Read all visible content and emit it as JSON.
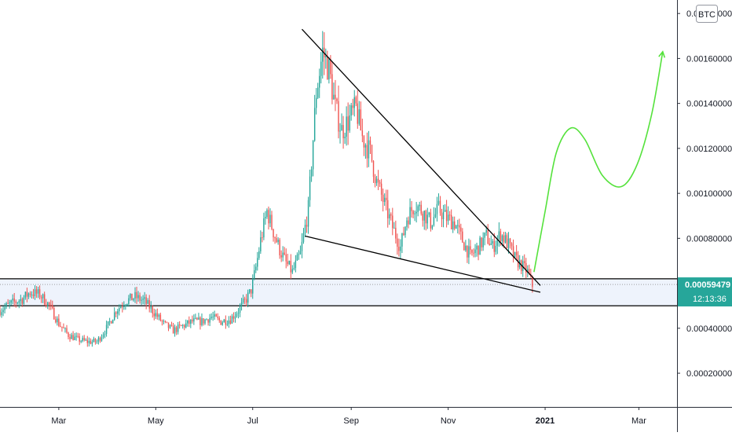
{
  "chart_data": {
    "type": "candlestick",
    "currency_label": "BTC",
    "price_axis": {
      "ticks": [
        "0.00180000",
        "0.00160000",
        "0.00140000",
        "0.00120000",
        "0.00100000",
        "0.00080000",
        "0.00060000",
        "0.00040000",
        "0.00020000"
      ],
      "tick_values": [
        0.0018,
        0.0016,
        0.0014,
        0.0012,
        0.001,
        0.0008,
        0.0006,
        0.0004,
        0.0002
      ],
      "ylim": [
        5e-05,
        0.00186
      ]
    },
    "time_axis": {
      "labels": [
        "Mar",
        "May",
        "Jul",
        "Sep",
        "Nov",
        "2021",
        "Mar"
      ],
      "bold": [
        false,
        false,
        false,
        false,
        false,
        true,
        false
      ],
      "label_days": [
        0,
        61,
        122,
        184,
        245,
        306,
        365
      ],
      "xlim_days": [
        -37,
        389
      ]
    },
    "last_price": {
      "value": "0.00059479",
      "countdown": "12:13:36",
      "color": "#26a69a"
    },
    "colors": {
      "up": "#26a69a",
      "down": "#ef5350",
      "forecast": "#55e23c",
      "zone_fill": "#eef3fc",
      "line": "#000000"
    },
    "price_path": [
      [
        -37,
        0.00048
      ],
      [
        -30,
        0.00051
      ],
      [
        -23,
        0.00053
      ],
      [
        -18,
        0.00056
      ],
      [
        -12,
        0.00055
      ],
      [
        -6,
        0.0005
      ],
      [
        0,
        0.00042
      ],
      [
        6,
        0.00037
      ],
      [
        12,
        0.00035
      ],
      [
        18,
        0.00034
      ],
      [
        24,
        0.00034
      ],
      [
        30,
        0.0004
      ],
      [
        36,
        0.00048
      ],
      [
        42,
        0.00052
      ],
      [
        48,
        0.00054
      ],
      [
        54,
        0.00052
      ],
      [
        60,
        0.00047
      ],
      [
        66,
        0.00042
      ],
      [
        72,
        0.00039
      ],
      [
        78,
        0.00041
      ],
      [
        84,
        0.00043
      ],
      [
        90,
        0.00043
      ],
      [
        96,
        0.00045
      ],
      [
        102,
        0.00043
      ],
      [
        108,
        0.00044
      ],
      [
        113,
        0.00048
      ],
      [
        118,
        0.00053
      ],
      [
        121,
        0.00057
      ],
      [
        124,
        0.00067
      ],
      [
        127,
        0.00079
      ],
      [
        131,
        0.00092
      ],
      [
        135,
        0.00083
      ],
      [
        139,
        0.00075
      ],
      [
        143,
        0.00069
      ],
      [
        147,
        0.00065
      ],
      [
        152,
        0.00073
      ],
      [
        157,
        0.00093
      ],
      [
        162,
        0.00145
      ],
      [
        166,
        0.00163
      ],
      [
        170,
        0.00155
      ],
      [
        174,
        0.00138
      ],
      [
        178,
        0.00128
      ],
      [
        182,
        0.00132
      ],
      [
        187,
        0.00138
      ],
      [
        191,
        0.00125
      ],
      [
        196,
        0.00118
      ],
      [
        200,
        0.00105
      ],
      [
        205,
        0.00095
      ],
      [
        210,
        0.00085
      ],
      [
        215,
        0.00076
      ],
      [
        219,
        0.00089
      ],
      [
        224,
        0.00095
      ],
      [
        229,
        0.00092
      ],
      [
        234,
        0.00087
      ],
      [
        239,
        0.00093
      ],
      [
        244,
        0.00089
      ],
      [
        249,
        0.00087
      ],
      [
        254,
        0.00079
      ],
      [
        259,
        0.00072
      ],
      [
        264,
        0.00076
      ],
      [
        269,
        0.00081
      ],
      [
        273,
        0.00076
      ],
      [
        278,
        0.00082
      ],
      [
        283,
        0.00077
      ],
      [
        287,
        0.00071
      ],
      [
        291,
        0.00068
      ],
      [
        295,
        0.00065
      ],
      [
        298,
        0.00059
      ]
    ],
    "annotations": {
      "wedge_upper": [
        [
          153,
          0.00173
        ],
        [
          303,
          0.00059
        ]
      ],
      "wedge_lower": [
        [
          155,
          0.00081
        ],
        [
          303,
          0.00056
        ]
      ],
      "zone": [
        0.0005,
        0.00062
      ],
      "current_price_dotted": 0.00059479,
      "forecast_path": [
        [
          299,
          0.00065
        ],
        [
          306,
          0.00092
        ],
        [
          313,
          0.00118
        ],
        [
          322,
          0.00129
        ],
        [
          331,
          0.00124
        ],
        [
          342,
          0.00108
        ],
        [
          354,
          0.00103
        ],
        [
          364,
          0.00113
        ],
        [
          373,
          0.00135
        ],
        [
          380,
          0.00163
        ]
      ]
    }
  }
}
